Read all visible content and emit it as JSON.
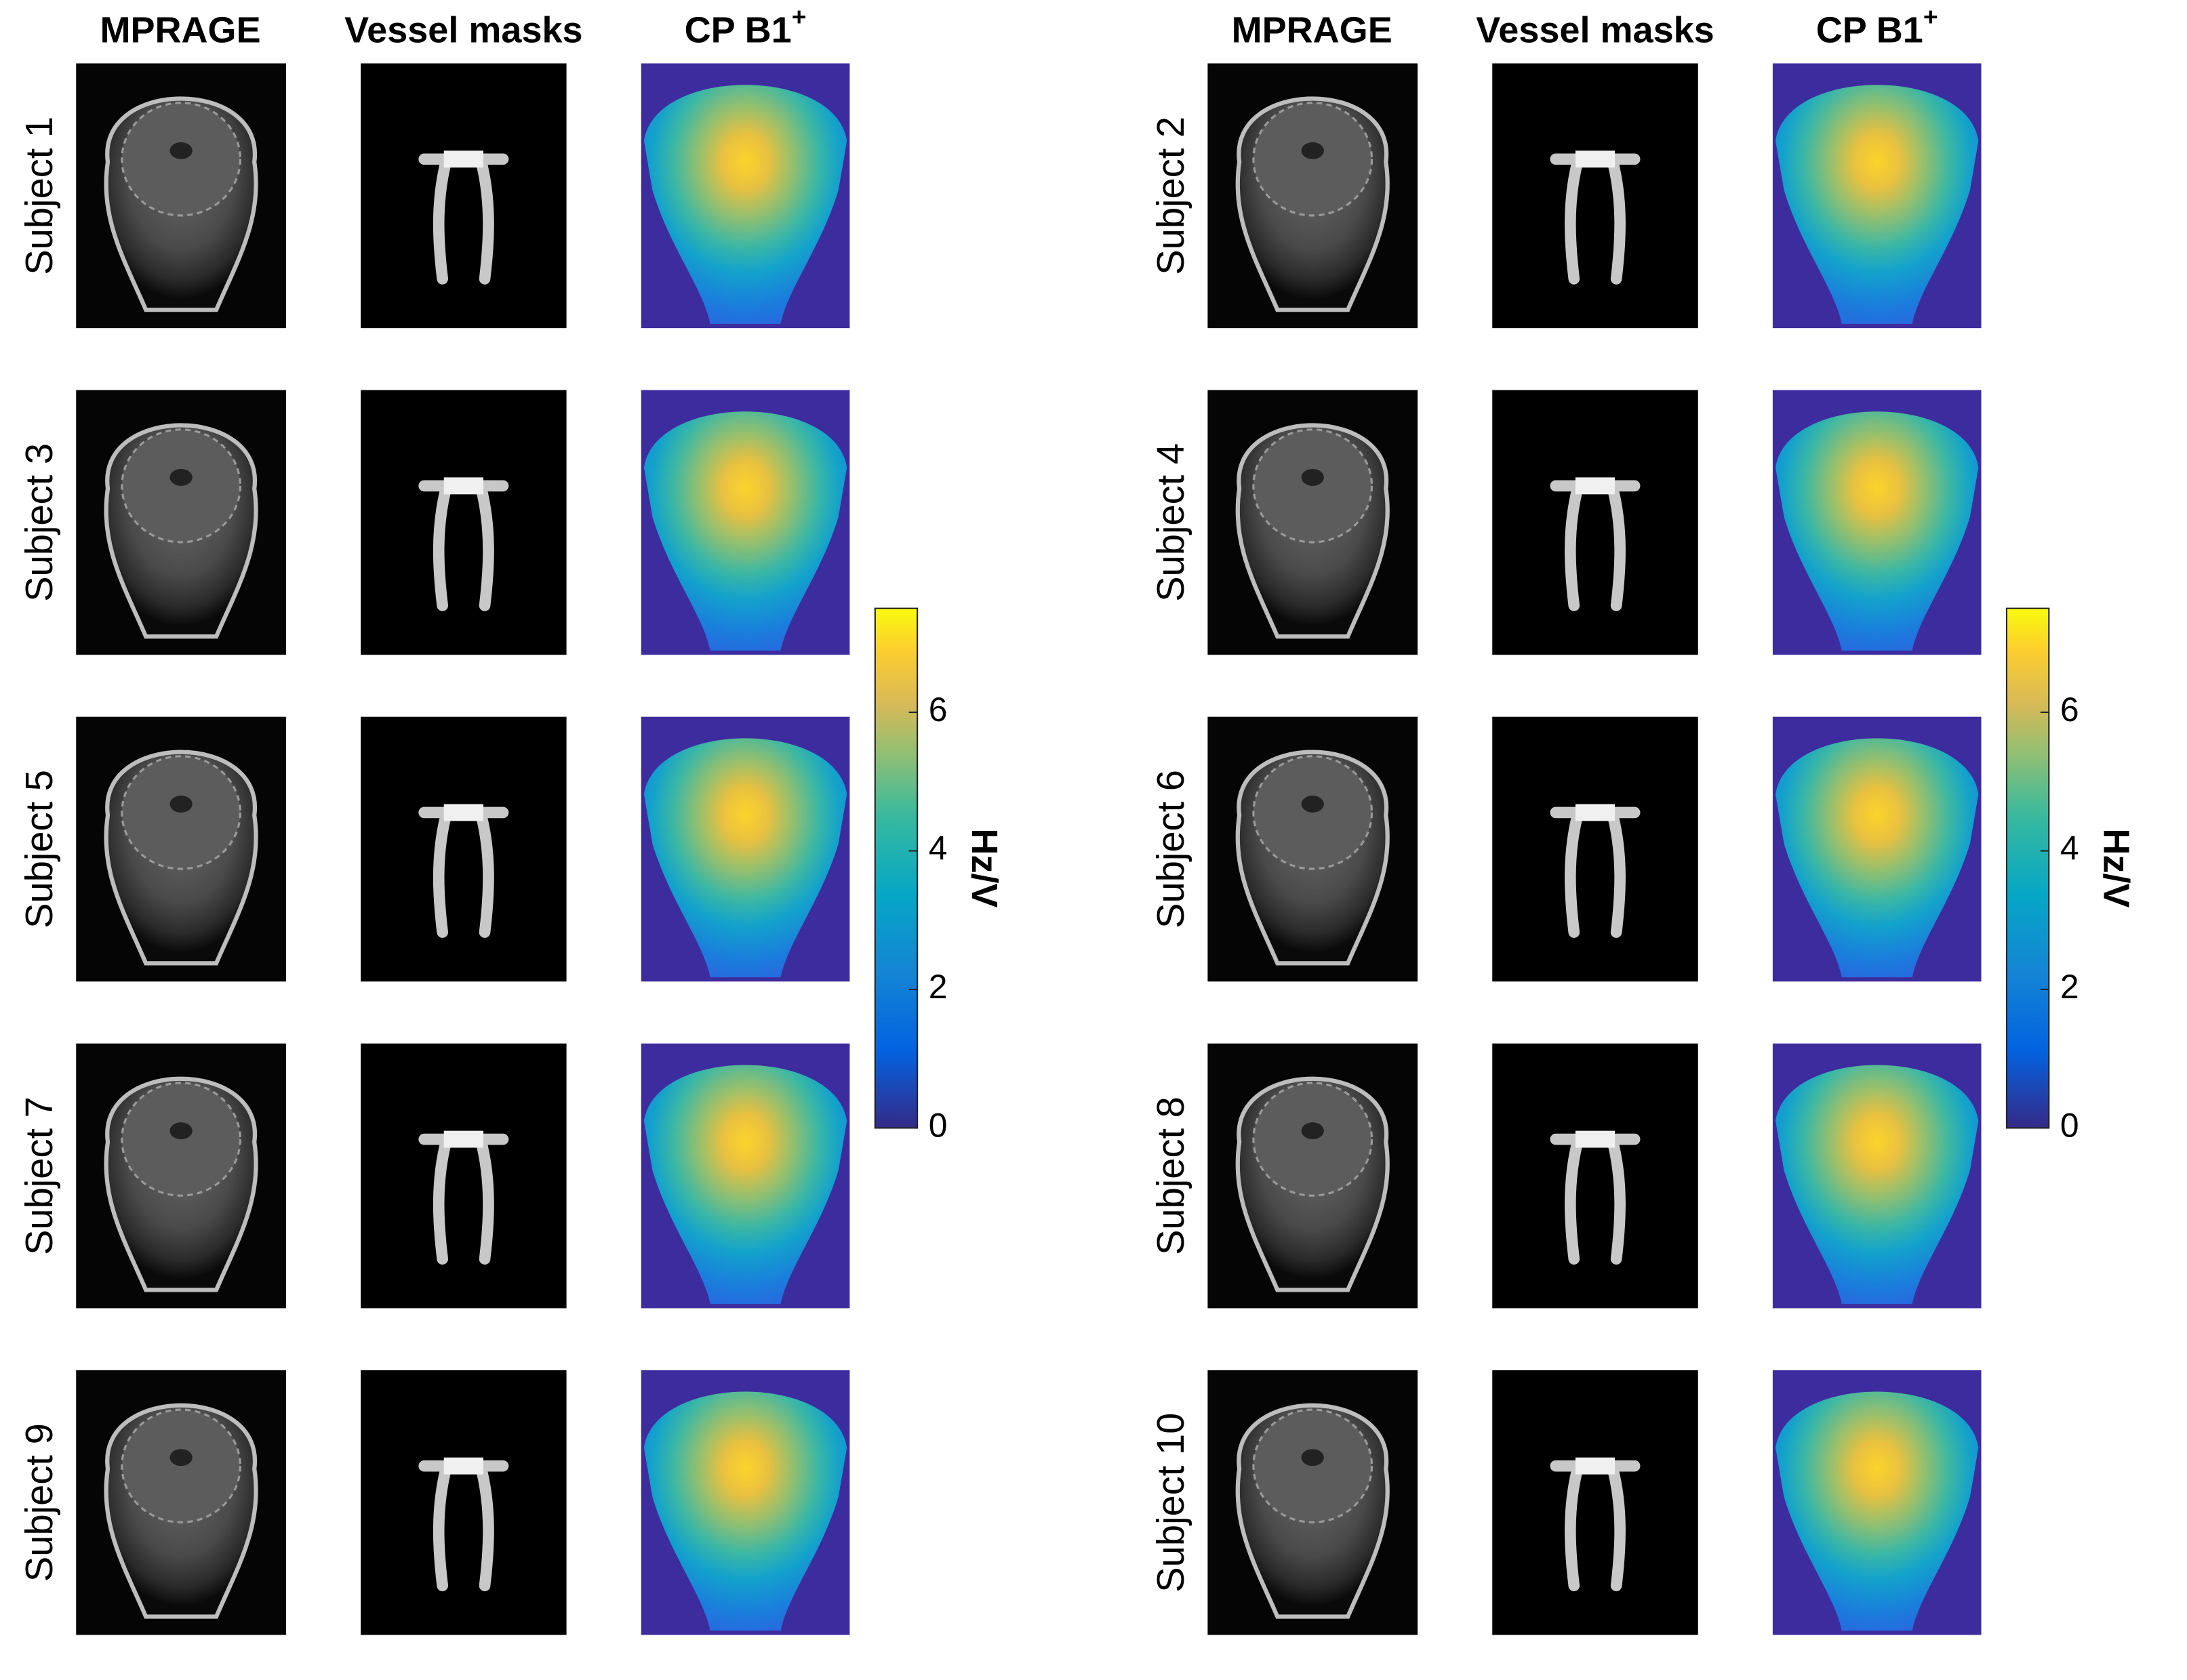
{
  "groups": [
    {
      "column_headers": [
        "MPRAGE",
        "Vessel masks",
        {
          "text": "CP B1",
          "superscript": "+"
        }
      ],
      "subjects": [
        "Subject 1",
        "Subject 3",
        "Subject 5",
        "Subject 7",
        "Subject 9"
      ],
      "colorbar": {
        "label": "Hz/V",
        "lim": [
          0,
          7.5
        ],
        "ticks": [
          0,
          2,
          4,
          6
        ]
      }
    },
    {
      "column_headers": [
        "MPRAGE",
        "Vessel masks",
        {
          "text": "CP B1",
          "superscript": "+"
        }
      ],
      "subjects": [
        "Subject 2",
        "Subject 4",
        "Subject 6",
        "Subject 8",
        "Subject 10"
      ],
      "colorbar": {
        "label": "Hz/V",
        "lim": [
          0,
          7.5
        ],
        "ticks": [
          0,
          2,
          4,
          6
        ]
      }
    }
  ]
}
